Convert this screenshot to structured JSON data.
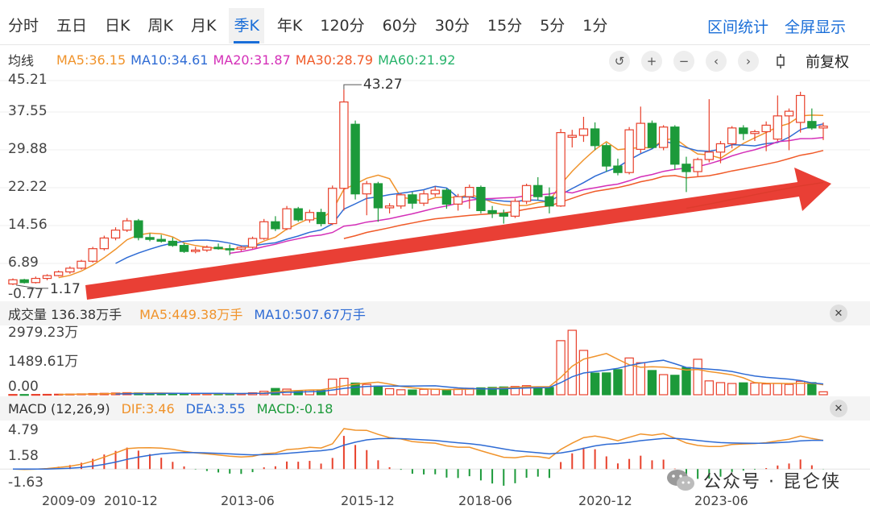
{
  "tabs": [
    "分时",
    "五日",
    "日K",
    "周K",
    "月K",
    "季K",
    "年K",
    "120分",
    "60分",
    "30分",
    "15分",
    "5分",
    "1分"
  ],
  "active_tab": "季K",
  "tab_links": {
    "interval_stats": "区间统计",
    "fullscreen": "全屏显示"
  },
  "ma_legend": {
    "label": "均线",
    "items": [
      {
        "text": "MA5:36.15",
        "color": "#f0932b"
      },
      {
        "text": "MA10:34.61",
        "color": "#2e6bd4"
      },
      {
        "text": "MA20:31.87",
        "color": "#d42fb8"
      },
      {
        "text": "MA30:28.79",
        "color": "#f05a28"
      },
      {
        "text": "MA60:21.92",
        "color": "#27b36b"
      }
    ]
  },
  "toolbar": {
    "adjust_label": "前复权"
  },
  "price_axis": [
    "45.21",
    "37.55",
    "29.88",
    "22.22",
    "14.56",
    "6.89",
    "-0.77"
  ],
  "annotations": {
    "high": "43.27",
    "low": "1.17"
  },
  "volume_panel": {
    "label": "成交量 136.38万手",
    "ma5": "MA5:449.38万手",
    "ma10": "MA10:507.67万手",
    "axis": [
      "2979.23万",
      "1489.61万",
      "0.00"
    ]
  },
  "macd_panel": {
    "label": "MACD (12,26,9)",
    "dif": "DIF:3.46",
    "dea": "DEA:3.55",
    "macd": "MACD:-0.18",
    "axis": [
      "4.79",
      "1.58",
      "-1.63"
    ]
  },
  "x_axis": [
    "2009-09",
    "2010-12",
    "2013-06",
    "2015-12",
    "2018-06",
    "2020-12",
    "2023-06"
  ],
  "watermark": "公众号 · 昆仑侠",
  "colors": {
    "up": "#e8412c",
    "down": "#1c9a3a",
    "accent": "#1a6ed8",
    "arrow": "#e8352a"
  },
  "chart_data": {
    "type": "candlestick",
    "period": "quarterly",
    "price_range": [
      -0.77,
      45.21
    ],
    "candles": [
      {
        "o": 1.4,
        "h": 2.6,
        "l": 1.17,
        "c": 2.3
      },
      {
        "o": 2.3,
        "h": 2.5,
        "l": 1.5,
        "c": 1.7
      },
      {
        "o": 1.7,
        "h": 3.0,
        "l": 1.5,
        "c": 2.6
      },
      {
        "o": 2.6,
        "h": 3.5,
        "l": 2.2,
        "c": 3.2
      },
      {
        "o": 3.2,
        "h": 4.3,
        "l": 3.0,
        "c": 4.0
      },
      {
        "o": 4.0,
        "h": 5.2,
        "l": 3.6,
        "c": 4.8
      },
      {
        "o": 4.8,
        "h": 6.6,
        "l": 4.5,
        "c": 6.3
      },
      {
        "o": 6.3,
        "h": 9.4,
        "l": 6.0,
        "c": 9.0
      },
      {
        "o": 9.0,
        "h": 11.8,
        "l": 8.6,
        "c": 11.3
      },
      {
        "o": 11.3,
        "h": 13.6,
        "l": 10.8,
        "c": 13.0
      },
      {
        "o": 13.0,
        "h": 15.6,
        "l": 12.6,
        "c": 15.0
      },
      {
        "o": 15.0,
        "h": 15.4,
        "l": 10.8,
        "c": 11.4
      },
      {
        "o": 11.4,
        "h": 12.3,
        "l": 10.6,
        "c": 11.0
      },
      {
        "o": 11.0,
        "h": 12.0,
        "l": 10.3,
        "c": 10.6
      },
      {
        "o": 10.6,
        "h": 11.4,
        "l": 9.4,
        "c": 9.7
      },
      {
        "o": 9.7,
        "h": 10.2,
        "l": 8.1,
        "c": 8.4
      },
      {
        "o": 8.4,
        "h": 9.4,
        "l": 8.0,
        "c": 8.7
      },
      {
        "o": 8.7,
        "h": 9.7,
        "l": 8.3,
        "c": 9.3
      },
      {
        "o": 9.3,
        "h": 10.1,
        "l": 8.8,
        "c": 9.0
      },
      {
        "o": 9.0,
        "h": 9.9,
        "l": 7.6,
        "c": 8.9
      },
      {
        "o": 8.9,
        "h": 9.6,
        "l": 8.5,
        "c": 9.3
      },
      {
        "o": 9.3,
        "h": 11.6,
        "l": 9.0,
        "c": 11.2
      },
      {
        "o": 11.2,
        "h": 15.4,
        "l": 10.9,
        "c": 14.8
      },
      {
        "o": 14.8,
        "h": 16.0,
        "l": 12.8,
        "c": 13.3
      },
      {
        "o": 13.3,
        "h": 18.2,
        "l": 13.0,
        "c": 17.6
      },
      {
        "o": 17.6,
        "h": 18.0,
        "l": 14.8,
        "c": 15.2
      },
      {
        "o": 15.2,
        "h": 17.4,
        "l": 14.6,
        "c": 16.8
      },
      {
        "o": 16.8,
        "h": 17.6,
        "l": 13.8,
        "c": 14.4
      },
      {
        "o": 14.4,
        "h": 22.6,
        "l": 14.1,
        "c": 22.0
      },
      {
        "o": 22.0,
        "h": 43.27,
        "l": 17.2,
        "c": 40.6
      },
      {
        "o": 35.8,
        "h": 36.6,
        "l": 19.6,
        "c": 20.8
      },
      {
        "o": 20.8,
        "h": 23.6,
        "l": 16.2,
        "c": 23.0
      },
      {
        "o": 23.0,
        "h": 23.4,
        "l": 14.8,
        "c": 17.8
      },
      {
        "o": 17.8,
        "h": 18.8,
        "l": 16.6,
        "c": 18.2
      },
      {
        "o": 18.2,
        "h": 21.0,
        "l": 17.6,
        "c": 20.6
      },
      {
        "o": 20.6,
        "h": 21.2,
        "l": 17.6,
        "c": 18.8
      },
      {
        "o": 18.8,
        "h": 21.6,
        "l": 18.2,
        "c": 20.8
      },
      {
        "o": 20.8,
        "h": 22.4,
        "l": 20.2,
        "c": 21.6
      },
      {
        "o": 21.6,
        "h": 22.0,
        "l": 17.6,
        "c": 18.6
      },
      {
        "o": 18.6,
        "h": 20.8,
        "l": 17.2,
        "c": 20.2
      },
      {
        "o": 20.2,
        "h": 22.8,
        "l": 17.6,
        "c": 22.2
      },
      {
        "o": 22.2,
        "h": 22.6,
        "l": 16.6,
        "c": 17.2
      },
      {
        "o": 17.2,
        "h": 18.2,
        "l": 15.6,
        "c": 16.6
      },
      {
        "o": 16.6,
        "h": 17.4,
        "l": 14.4,
        "c": 16.0
      },
      {
        "o": 16.0,
        "h": 19.8,
        "l": 15.6,
        "c": 19.2
      },
      {
        "o": 19.2,
        "h": 23.0,
        "l": 18.6,
        "c": 22.6
      },
      {
        "o": 22.6,
        "h": 24.4,
        "l": 19.4,
        "c": 20.2
      },
      {
        "o": 20.2,
        "h": 22.2,
        "l": 16.6,
        "c": 18.2
      },
      {
        "o": 18.2,
        "h": 34.8,
        "l": 18.0,
        "c": 34.0
      },
      {
        "o": 33.0,
        "h": 34.6,
        "l": 30.8,
        "c": 33.4
      },
      {
        "o": 33.4,
        "h": 37.4,
        "l": 32.0,
        "c": 34.8
      },
      {
        "o": 34.8,
        "h": 36.2,
        "l": 30.2,
        "c": 31.2
      },
      {
        "o": 31.2,
        "h": 31.8,
        "l": 25.6,
        "c": 26.8
      },
      {
        "o": 26.8,
        "h": 28.4,
        "l": 24.8,
        "c": 25.4
      },
      {
        "o": 25.4,
        "h": 35.2,
        "l": 25.0,
        "c": 34.6
      },
      {
        "o": 30.4,
        "h": 39.6,
        "l": 29.6,
        "c": 36.0
      },
      {
        "o": 36.0,
        "h": 36.6,
        "l": 30.6,
        "c": 30.8
      },
      {
        "o": 30.8,
        "h": 35.6,
        "l": 30.2,
        "c": 35.2
      },
      {
        "o": 35.2,
        "h": 35.6,
        "l": 26.0,
        "c": 27.2
      },
      {
        "o": 27.2,
        "h": 28.8,
        "l": 21.2,
        "c": 25.6
      },
      {
        "o": 25.6,
        "h": 28.6,
        "l": 24.6,
        "c": 28.2
      },
      {
        "o": 28.2,
        "h": 41.2,
        "l": 27.6,
        "c": 29.8
      },
      {
        "o": 29.8,
        "h": 32.2,
        "l": 27.4,
        "c": 31.6
      },
      {
        "o": 31.6,
        "h": 35.4,
        "l": 30.6,
        "c": 35.0
      },
      {
        "o": 35.0,
        "h": 35.6,
        "l": 32.4,
        "c": 33.8
      },
      {
        "o": 33.8,
        "h": 34.6,
        "l": 32.2,
        "c": 34.2
      },
      {
        "o": 34.2,
        "h": 36.4,
        "l": 30.0,
        "c": 35.6
      },
      {
        "o": 32.6,
        "h": 42.0,
        "l": 32.2,
        "c": 37.6
      },
      {
        "o": 37.6,
        "h": 39.2,
        "l": 30.2,
        "c": 38.6
      },
      {
        "o": 36.2,
        "h": 42.8,
        "l": 34.0,
        "c": 42.0
      },
      {
        "o": 36.4,
        "h": 39.2,
        "l": 34.6,
        "c": 35.0
      },
      {
        "o": 35.0,
        "h": 36.2,
        "l": 32.4,
        "c": 35.4
      }
    ],
    "volume_range": [
      0,
      2979.23
    ],
    "volumes": [
      12,
      10,
      14,
      18,
      25,
      30,
      40,
      55,
      65,
      80,
      95,
      85,
      70,
      60,
      50,
      48,
      52,
      58,
      50,
      45,
      55,
      90,
      160,
      290,
      260,
      180,
      210,
      200,
      720,
      760,
      540,
      480,
      400,
      280,
      230,
      220,
      250,
      260,
      240,
      260,
      300,
      320,
      340,
      360,
      380,
      420,
      360,
      340,
      2500,
      2979.23,
      2050,
      1000,
      1010,
      1160,
      1700,
      1480,
      1120,
      930,
      900,
      1260,
      1640,
      640,
      560,
      520,
      550,
      540,
      500,
      520,
      480,
      620,
      560,
      136.38
    ],
    "macd_range": [
      -1.63,
      4.79
    ],
    "arrow": true
  }
}
